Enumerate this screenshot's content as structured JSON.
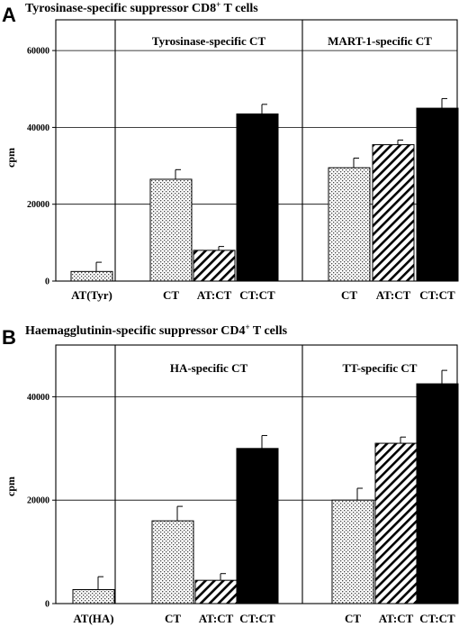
{
  "chart_data": [
    {
      "type": "bar",
      "panel": "A",
      "title": "Tyrosinase-specific suppressor CD8",
      "title_sup": "+",
      "title_suffix": " T cells",
      "ylabel": "cpm",
      "ylim": [
        0,
        68000
      ],
      "yticks": [
        0,
        20000,
        40000,
        60000
      ],
      "tick_labels": [
        "0",
        "20000",
        "40000",
        "60000"
      ],
      "grid": true,
      "groups": [
        {
          "label": "",
          "categories": [
            "AT(Tyr)"
          ],
          "values": [
            2500
          ],
          "errors": [
            2400
          ],
          "patterns": [
            "dots"
          ]
        },
        {
          "label": "Tyrosinase-specific CT",
          "categories": [
            "CT",
            "AT:CT",
            "CT:CT"
          ],
          "values": [
            26500,
            8000,
            43500
          ],
          "errors": [
            2500,
            1000,
            2500
          ],
          "patterns": [
            "dots",
            "hatch",
            "solid"
          ]
        },
        {
          "label": "MART-1-specific CT",
          "categories": [
            "CT",
            "AT:CT",
            "CT:CT"
          ],
          "values": [
            29500,
            35500,
            45000
          ],
          "errors": [
            2500,
            1200,
            2500
          ],
          "patterns": [
            "dots",
            "hatch",
            "solid"
          ]
        }
      ]
    },
    {
      "type": "bar",
      "panel": "B",
      "title": "Haemagglutinin-specific suppressor CD4",
      "title_sup": "+",
      "title_suffix": " T cells",
      "ylabel": "cpm",
      "ylim": [
        0,
        50000
      ],
      "yticks": [
        0,
        20000,
        40000
      ],
      "tick_labels": [
        "0",
        "20000",
        "40000"
      ],
      "grid": true,
      "groups": [
        {
          "label": "",
          "categories": [
            "AT(HA)"
          ],
          "values": [
            2700
          ],
          "errors": [
            2500
          ],
          "patterns": [
            "dots"
          ]
        },
        {
          "label": "HA-specific CT",
          "categories": [
            "CT",
            "AT:CT",
            "CT:CT"
          ],
          "values": [
            16000,
            4500,
            30000
          ],
          "errors": [
            2800,
            1300,
            2500
          ],
          "patterns": [
            "dots",
            "hatch",
            "solid"
          ]
        },
        {
          "label": "TT-specific CT",
          "categories": [
            "CT",
            "AT:CT",
            "CT:CT"
          ],
          "values": [
            20000,
            31000,
            42500
          ],
          "errors": [
            2300,
            1200,
            2600
          ],
          "patterns": [
            "dots",
            "hatch",
            "solid"
          ]
        }
      ]
    }
  ]
}
